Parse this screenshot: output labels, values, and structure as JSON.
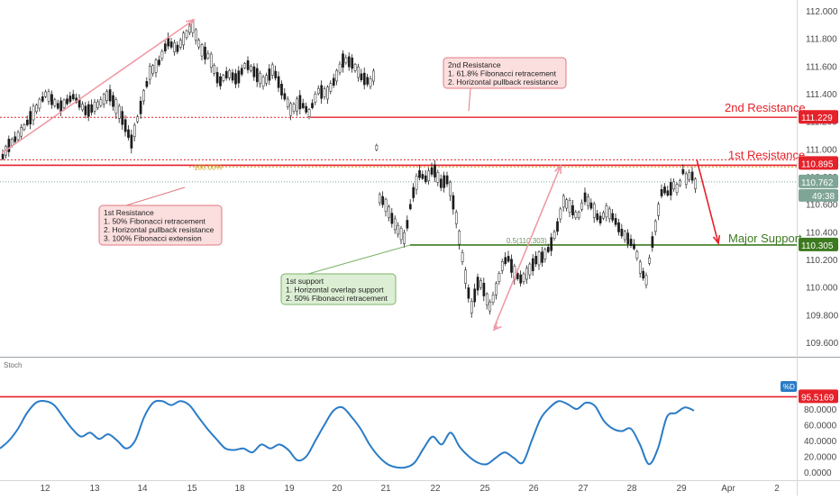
{
  "chart_data": [
    {
      "type": "candlestick",
      "title": "",
      "xlabel": "",
      "ylabel": "",
      "ylim": [
        109.5,
        112.05
      ],
      "x_ticks": [
        "12",
        "13",
        "14",
        "15",
        "18",
        "19",
        "20",
        "21",
        "22",
        "25",
        "26",
        "27",
        "28",
        "29",
        "Apr",
        "2"
      ],
      "y_ticks": [
        "109.600",
        "109.800",
        "110.000",
        "110.200",
        "110.400",
        "110.600",
        "110.800",
        "111.000",
        "111.200",
        "111.400",
        "111.600",
        "111.800",
        "112.000"
      ],
      "price_path": [
        [
          0,
          110.92
        ],
        [
          8,
          111.02
        ],
        [
          20,
          111.1
        ],
        [
          35,
          111.25
        ],
        [
          50,
          111.4
        ],
        [
          65,
          111.3
        ],
        [
          80,
          111.38
        ],
        [
          95,
          111.27
        ],
        [
          110,
          111.33
        ],
        [
          120,
          111.4
        ],
        [
          135,
          111.22
        ],
        [
          145,
          111.05
        ],
        [
          155,
          111.3
        ],
        [
          165,
          111.55
        ],
        [
          175,
          111.62
        ],
        [
          185,
          111.78
        ],
        [
          195,
          111.72
        ],
        [
          205,
          111.82
        ],
        [
          212,
          111.9
        ],
        [
          222,
          111.72
        ],
        [
          232,
          111.66
        ],
        [
          242,
          111.48
        ],
        [
          252,
          111.55
        ],
        [
          262,
          111.5
        ],
        [
          272,
          111.62
        ],
        [
          282,
          111.55
        ],
        [
          292,
          111.48
        ],
        [
          302,
          111.58
        ],
        [
          312,
          111.42
        ],
        [
          322,
          111.28
        ],
        [
          332,
          111.34
        ],
        [
          342,
          111.26
        ],
        [
          352,
          111.42
        ],
        [
          362,
          111.4
        ],
        [
          372,
          111.52
        ],
        [
          380,
          111.65
        ],
        [
          390,
          111.62
        ],
        [
          400,
          111.52
        ],
        [
          410,
          111.48
        ],
        [
          415,
          111.55
        ],
        [
          418,
          110.65
        ],
        [
          425,
          110.62
        ],
        [
          432,
          110.52
        ],
        [
          440,
          110.42
        ],
        [
          448,
          110.35
        ],
        [
          456,
          110.65
        ],
        [
          464,
          110.82
        ],
        [
          472,
          110.78
        ],
        [
          480,
          110.86
        ],
        [
          488,
          110.75
        ],
        [
          496,
          110.78
        ],
        [
          504,
          110.55
        ],
        [
          510,
          110.3
        ],
        [
          516,
          110.05
        ],
        [
          522,
          109.85
        ],
        [
          530,
          110.05
        ],
        [
          536,
          109.98
        ],
        [
          542,
          109.85
        ],
        [
          548,
          109.95
        ],
        [
          556,
          110.15
        ],
        [
          562,
          110.22
        ],
        [
          570,
          110.1
        ],
        [
          578,
          110.05
        ],
        [
          586,
          110.12
        ],
        [
          594,
          110.2
        ],
        [
          602,
          110.22
        ],
        [
          610,
          110.3
        ],
        [
          618,
          110.45
        ],
        [
          624,
          110.62
        ],
        [
          632,
          110.58
        ],
        [
          640,
          110.5
        ],
        [
          648,
          110.65
        ],
        [
          656,
          110.58
        ],
        [
          664,
          110.48
        ],
        [
          672,
          110.55
        ],
        [
          680,
          110.5
        ],
        [
          688,
          110.4
        ],
        [
          696,
          110.35
        ],
        [
          704,
          110.28
        ],
        [
          710,
          110.12
        ],
        [
          716,
          110.05
        ],
        [
          722,
          110.3
        ],
        [
          728,
          110.5
        ],
        [
          734,
          110.72
        ],
        [
          740,
          110.68
        ],
        [
          746,
          110.74
        ],
        [
          752,
          110.7
        ],
        [
          756,
          110.85
        ],
        [
          760,
          110.78
        ],
        [
          766,
          110.82
        ],
        [
          772,
          110.72
        ]
      ],
      "annotations": [
        {
          "label": "2nd Resistance",
          "value": "111.229",
          "color": "#e5212a"
        },
        {
          "label": "1st Resistance",
          "value": "110.895",
          "color": "#e5212a"
        },
        {
          "label": "Major Support",
          "value": "110.305",
          "color": "#3d7a1f"
        }
      ],
      "fib_100": "100.00%",
      "fib_05": "0.5(110.303)",
      "last_price": "110.762",
      "countdown": "49:38",
      "levels": {
        "resistance2": 111.229,
        "resistance1": 110.895,
        "fib100": 110.87,
        "last": 110.762,
        "support": 110.305
      }
    },
    {
      "type": "line",
      "title": "",
      "series_name": "Stoch",
      "ylim": [
        -2,
        100
      ],
      "y_ticks": [
        "0.0000",
        "20.0000",
        "40.0000",
        "60.0000",
        "80.0000"
      ],
      "level_line": "95.5169",
      "legend_tag": "%D",
      "values": [
        [
          0,
          30
        ],
        [
          10,
          40
        ],
        [
          20,
          55
        ],
        [
          30,
          75
        ],
        [
          40,
          88
        ],
        [
          50,
          90
        ],
        [
          60,
          85
        ],
        [
          70,
          70
        ],
        [
          80,
          55
        ],
        [
          90,
          45
        ],
        [
          100,
          50
        ],
        [
          110,
          42
        ],
        [
          120,
          48
        ],
        [
          130,
          40
        ],
        [
          140,
          30
        ],
        [
          150,
          40
        ],
        [
          160,
          70
        ],
        [
          170,
          88
        ],
        [
          180,
          90
        ],
        [
          190,
          85
        ],
        [
          200,
          90
        ],
        [
          210,
          85
        ],
        [
          220,
          70
        ],
        [
          230,
          55
        ],
        [
          240,
          42
        ],
        [
          250,
          30
        ],
        [
          260,
          28
        ],
        [
          270,
          30
        ],
        [
          280,
          25
        ],
        [
          290,
          35
        ],
        [
          300,
          30
        ],
        [
          310,
          35
        ],
        [
          320,
          28
        ],
        [
          330,
          15
        ],
        [
          340,
          20
        ],
        [
          350,
          40
        ],
        [
          360,
          60
        ],
        [
          370,
          78
        ],
        [
          380,
          82
        ],
        [
          390,
          70
        ],
        [
          400,
          55
        ],
        [
          410,
          35
        ],
        [
          420,
          20
        ],
        [
          430,
          10
        ],
        [
          440,
          6
        ],
        [
          450,
          6
        ],
        [
          460,
          12
        ],
        [
          470,
          30
        ],
        [
          480,
          45
        ],
        [
          490,
          35
        ],
        [
          500,
          50
        ],
        [
          510,
          32
        ],
        [
          520,
          20
        ],
        [
          530,
          12
        ],
        [
          540,
          10
        ],
        [
          550,
          18
        ],
        [
          560,
          25
        ],
        [
          570,
          18
        ],
        [
          580,
          12
        ],
        [
          590,
          40
        ],
        [
          600,
          68
        ],
        [
          610,
          82
        ],
        [
          620,
          90
        ],
        [
          630,
          86
        ],
        [
          640,
          80
        ],
        [
          650,
          88
        ],
        [
          660,
          84
        ],
        [
          670,
          65
        ],
        [
          680,
          55
        ],
        [
          690,
          52
        ],
        [
          700,
          55
        ],
        [
          710,
          35
        ],
        [
          720,
          10
        ],
        [
          730,
          30
        ],
        [
          740,
          70
        ],
        [
          750,
          75
        ],
        [
          760,
          82
        ],
        [
          770,
          78
        ]
      ]
    }
  ],
  "x_axis_labels": [
    "12",
    "13",
    "14",
    "15",
    "18",
    "19",
    "20",
    "21",
    "22",
    "25",
    "26",
    "27",
    "28",
    "29",
    "Apr",
    "2"
  ],
  "callouts": [
    {
      "lines": [
        "2nd Resistance",
        "1. 61.8% Fibonacci retracement",
        "2. Horizontal pullback resistance"
      ],
      "style": "red"
    },
    {
      "lines": [
        "1st Resistance",
        "1. 50% Fibonacci retracement",
        "2. Horizontal pullback resistance",
        "3. 100% Fibonacci extension"
      ],
      "style": "red"
    },
    {
      "lines": [
        "1st support",
        "1. Horizontal overlap support",
        "2. 50% Fibonacci retracement"
      ],
      "style": "green"
    }
  ],
  "colors": {
    "resistance": "#e5212a",
    "support": "#3d7a1f",
    "bull": "#1d1d1d",
    "bear": "#ffffff",
    "stoch": "#2a7cc7",
    "fib": "#c9a227",
    "arrow": "#f09aa6",
    "last_price_bg": "#7fa596",
    "red_box_bg": "#fbdede",
    "green_box_bg": "#dcefd4"
  }
}
